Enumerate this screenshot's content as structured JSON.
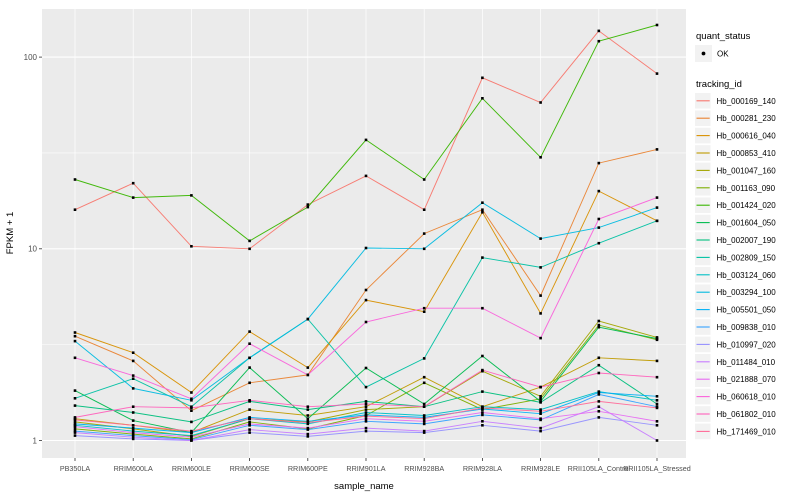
{
  "figure": {
    "kind": "ggplot-line-chart",
    "x_axis_title": "sample_name",
    "y_axis_title": "FPKM + 1"
  },
  "legend": {
    "quant_status_title": "quant_status",
    "quant_status_items": [
      {
        "label": "OK",
        "symbol": "point"
      }
    ],
    "tracking_id_title": "tracking_id"
  },
  "colors": {
    "panel_bg": "#EBEBEB",
    "grid": "#FFFFFF",
    "points": "#000000",
    "tick_label": "#4D4D4D",
    "axis_title": "#000000",
    "axis_tick": "#333333",
    "legend_key_bg": "#F2F2F2"
  },
  "chart_data": {
    "type": "line",
    "title": "",
    "xlabel": "sample_name",
    "ylabel": "FPKM + 1",
    "y_scale": "log10",
    "y_ticks": [
      1,
      10,
      100
    ],
    "y_minor_ticks": [
      3.1623,
      31.623
    ],
    "ylim": [
      0.93,
      170
    ],
    "grid": true,
    "legend_position": "right",
    "point_shape": "small-black-point",
    "x_categories": [
      "PB350LA",
      "RRIM600LA",
      "RRIM600LE",
      "RRIM600SE",
      "RRIM600PE",
      "RRIM901LA",
      "RRIM928BA",
      "RRIM928LA",
      "RRIM928LE",
      "RRII105LA_Control",
      "RRII105LA_Stressed"
    ],
    "series": [
      {
        "name": "Hb_000169_140",
        "color": "#F8766D",
        "quant_status": "OK",
        "values": [
          16,
          22,
          10.3,
          10,
          17,
          24,
          16,
          78,
          58,
          137,
          82
        ]
      },
      {
        "name": "Hb_000281_230",
        "color": "#EA8331",
        "quant_status": "OK",
        "values": [
          3.5,
          2.6,
          1.43,
          2.0,
          2.2,
          6.1,
          12,
          16,
          5.7,
          28,
          33
        ]
      },
      {
        "name": "Hb_000616_040",
        "color": "#D89000",
        "quant_status": "OK",
        "values": [
          3.66,
          2.87,
          1.78,
          3.7,
          2.4,
          5.4,
          4.7,
          15.5,
          4.6,
          20,
          14
        ]
      },
      {
        "name": "Hb_000853_410",
        "color": "#C09B00",
        "quant_status": "OK",
        "values": [
          1.3,
          1.2,
          1.1,
          1.45,
          1.35,
          1.5,
          2.14,
          1.5,
          1.9,
          2.7,
          2.6
        ]
      },
      {
        "name": "Hb_001047_160",
        "color": "#A3A500",
        "quant_status": "OK",
        "values": [
          1.25,
          1.15,
          1.05,
          1.3,
          1.25,
          1.45,
          1.5,
          2.3,
          1.7,
          4.2,
          3.45
        ]
      },
      {
        "name": "Hb_001163_090",
        "color": "#7CAE00",
        "quant_status": "OK",
        "values": [
          1.15,
          1.08,
          1.02,
          1.25,
          1.15,
          1.35,
          2.0,
          1.45,
          1.65,
          4.0,
          3.35
        ]
      },
      {
        "name": "Hb_001424_020",
        "color": "#39B600",
        "quant_status": "OK",
        "values": [
          23,
          18.5,
          19,
          11,
          16.5,
          37,
          23,
          61,
          30,
          121,
          147
        ]
      },
      {
        "name": "Hb_001604_050",
        "color": "#00BB4E",
        "quant_status": "OK",
        "values": [
          1.82,
          1.27,
          1.1,
          2.4,
          1.3,
          2.39,
          1.55,
          2.76,
          1.6,
          3.9,
          3.4
        ]
      },
      {
        "name": "Hb_002007_190",
        "color": "#00BF7D",
        "quant_status": "OK",
        "values": [
          1.52,
          1.4,
          1.25,
          1.6,
          1.45,
          1.6,
          1.5,
          1.8,
          1.58,
          2.47,
          1.55
        ]
      },
      {
        "name": "Hb_002809_150",
        "color": "#00C1A3",
        "quant_status": "OK",
        "values": [
          1.66,
          2.1,
          1.5,
          2.7,
          4.3,
          1.9,
          2.68,
          9.0,
          8.0,
          10.7,
          14
        ]
      },
      {
        "name": "Hb_003124_060",
        "color": "#00BFC4",
        "quant_status": "OK",
        "values": [
          1.2,
          1.12,
          1.06,
          1.3,
          1.22,
          1.4,
          1.35,
          1.5,
          1.45,
          1.8,
          1.62
        ]
      },
      {
        "name": "Hb_003294_100",
        "color": "#00BAE0",
        "quant_status": "OK",
        "values": [
          3.3,
          1.87,
          1.62,
          2.7,
          4.3,
          10.1,
          10,
          17.4,
          11.3,
          12.9,
          16.4
        ]
      },
      {
        "name": "Hb_005501_050",
        "color": "#00B0F6",
        "quant_status": "OK",
        "values": [
          1.22,
          1.16,
          1.1,
          1.32,
          1.26,
          1.36,
          1.32,
          1.46,
          1.38,
          1.78,
          1.7
        ]
      },
      {
        "name": "Hb_009838_010",
        "color": "#35A2FF",
        "quant_status": "OK",
        "values": [
          1.12,
          1.06,
          1.01,
          1.2,
          1.14,
          1.26,
          1.22,
          1.36,
          1.28,
          1.74,
          1.5
        ]
      },
      {
        "name": "Hb_010997_020",
        "color": "#9590FF",
        "quant_status": "OK",
        "values": [
          1.06,
          1.02,
          1.0,
          1.1,
          1.05,
          1.12,
          1.1,
          1.2,
          1.12,
          1.32,
          1.2
        ]
      },
      {
        "name": "Hb_011484_010",
        "color": "#C77CFF",
        "quant_status": "OK",
        "values": [
          1.1,
          1.04,
          1.0,
          1.14,
          1.08,
          1.16,
          1.12,
          1.26,
          1.16,
          1.5,
          1.0
        ]
      },
      {
        "name": "Hb_021888_070",
        "color": "#E76BF3",
        "quant_status": "OK",
        "values": [
          1.18,
          1.1,
          1.04,
          1.22,
          1.16,
          1.3,
          1.26,
          1.4,
          1.3,
          1.42,
          1.26
        ]
      },
      {
        "name": "Hb_060618_010",
        "color": "#FA62DB",
        "quant_status": "OK",
        "values": [
          2.7,
          2.18,
          1.65,
          3.2,
          2.2,
          4.15,
          4.9,
          4.9,
          3.42,
          14.3,
          18.5
        ]
      },
      {
        "name": "Hb_061802_010",
        "color": "#FF62BC",
        "quant_status": "OK",
        "values": [
          1.32,
          1.5,
          1.48,
          1.62,
          1.5,
          1.55,
          1.5,
          2.33,
          1.9,
          2.25,
          2.14
        ]
      },
      {
        "name": "Hb_171469_010",
        "color": "#FF6A98",
        "quant_status": "OK",
        "values": [
          1.28,
          1.2,
          1.12,
          1.3,
          1.24,
          1.34,
          1.3,
          1.48,
          1.42,
          1.6,
          1.48
        ]
      }
    ]
  }
}
